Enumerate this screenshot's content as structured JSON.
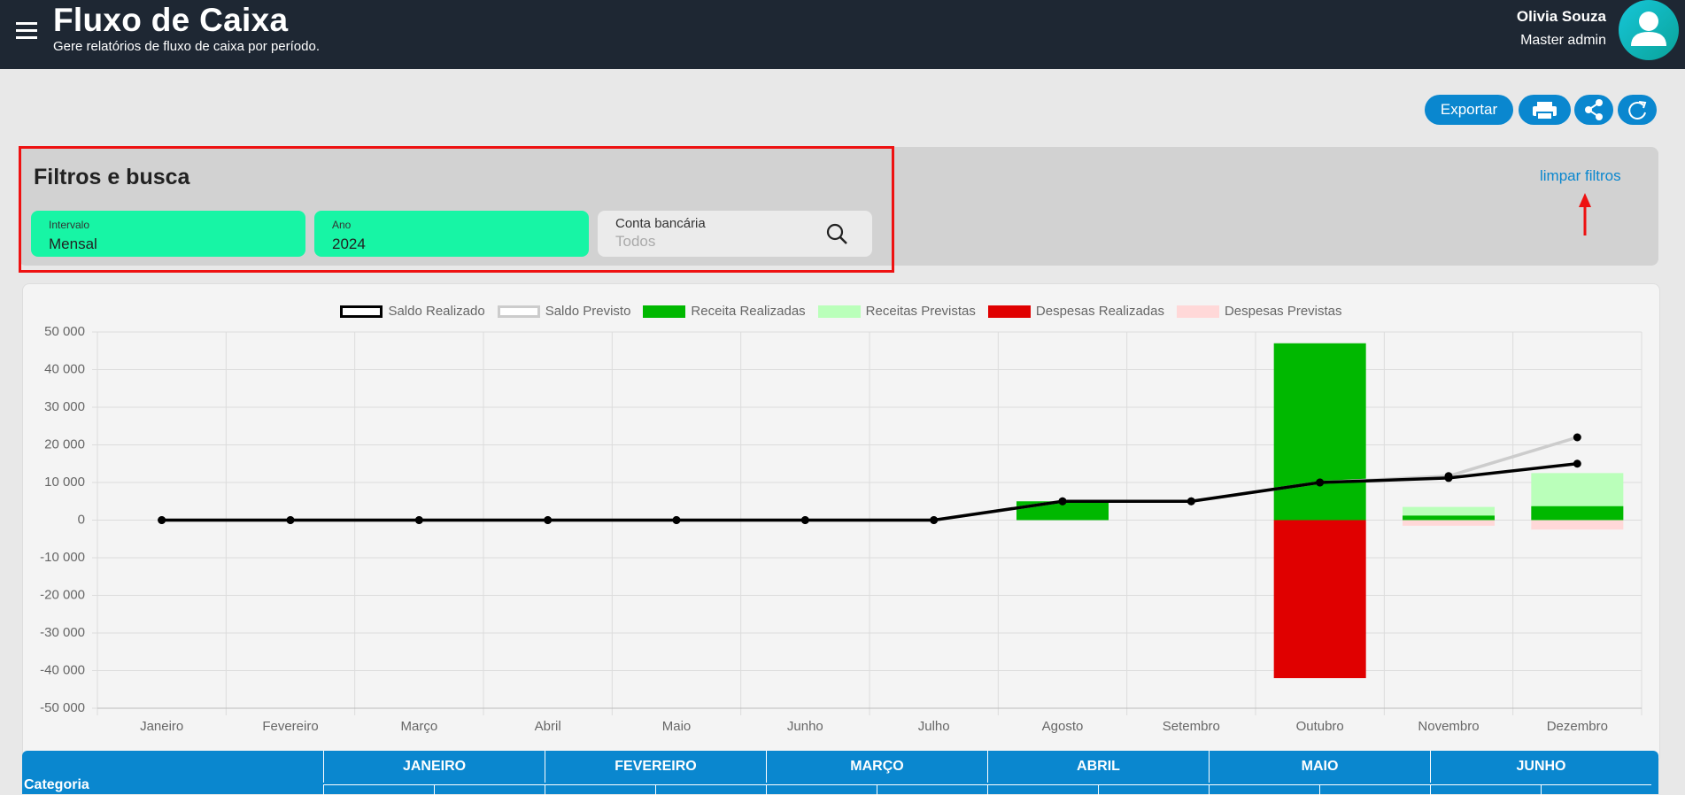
{
  "header": {
    "title": "Fluxo de Caixa",
    "subtitle": "Gere relatórios de fluxo de caixa por período.",
    "user_name": "Olivia Souza",
    "user_role": "Master admin"
  },
  "toolbar": {
    "export_button": "Exportar"
  },
  "filters": {
    "title": "Filtros e busca",
    "clear": "limpar filtros",
    "fields": [
      {
        "label": "Intervalo",
        "value": "Mensal"
      },
      {
        "label": "Ano",
        "value": "2024"
      },
      {
        "label": "Conta bancária",
        "placeholder": "Todos"
      }
    ]
  },
  "chart_data": {
    "type": "bar",
    "categories": [
      "Janeiro",
      "Fevereiro",
      "Março",
      "Abril",
      "Maio",
      "Junho",
      "Julho",
      "Agosto",
      "Setembro",
      "Outubro",
      "Novembro",
      "Dezembro"
    ],
    "series": [
      {
        "name": "Saldo Realizado",
        "type": "line",
        "color": "#000000",
        "point_color": "#000000",
        "values": [
          0,
          0,
          0,
          0,
          0,
          0,
          0,
          5000,
          5000,
          10000,
          11200,
          15000
        ]
      },
      {
        "name": "Saldo Previsto",
        "type": "line",
        "color": "#cccccc",
        "point_color": "#000000",
        "values": [
          0,
          0,
          0,
          0,
          0,
          0,
          0,
          5000,
          5000,
          10000,
          11700,
          22000
        ]
      },
      {
        "name": "Receita Realizadas",
        "type": "bar",
        "color": "#00b800",
        "values": [
          0,
          0,
          0,
          0,
          0,
          0,
          0,
          5000,
          0,
          47000,
          1200,
          3700
        ]
      },
      {
        "name": "Receitas Previstas",
        "type": "bar",
        "color": "#baffba",
        "values": [
          0,
          0,
          0,
          0,
          0,
          0,
          0,
          0,
          0,
          0,
          3500,
          12500
        ]
      },
      {
        "name": "Despesas Realizadas",
        "type": "bar",
        "color": "#e00000",
        "values": [
          0,
          0,
          0,
          0,
          0,
          0,
          0,
          0,
          0,
          -42000,
          0,
          0
        ]
      },
      {
        "name": "Despesas Previstas",
        "type": "bar",
        "color": "#ffd8d8",
        "values": [
          0,
          0,
          0,
          0,
          0,
          0,
          0,
          0,
          0,
          0,
          -1500,
          -2500
        ]
      }
    ],
    "ylim": [
      -50000,
      50000
    ],
    "yticks": [
      {
        "value": -50000,
        "label": "-50 000"
      },
      {
        "value": -40000,
        "label": "-40 000"
      },
      {
        "value": -30000,
        "label": "-30 000"
      },
      {
        "value": -20000,
        "label": "-20 000"
      },
      {
        "value": -10000,
        "label": "-10 000"
      },
      0,
      {
        "value": 10000,
        "label": "10 000"
      },
      {
        "value": 20000,
        "label": "20 000"
      },
      {
        "value": 30000,
        "label": "30 000"
      },
      {
        "value": 40000,
        "label": "40 000"
      },
      {
        "value": 50000,
        "label": "50 000"
      }
    ],
    "grid": true,
    "legend": "top"
  },
  "table": {
    "header": {
      "category": "Categoria",
      "months": [
        "JANEIRO",
        "FEVEREIRO",
        "MARÇO",
        "ABRIL",
        "MAIO",
        "JUNHO"
      ]
    }
  }
}
